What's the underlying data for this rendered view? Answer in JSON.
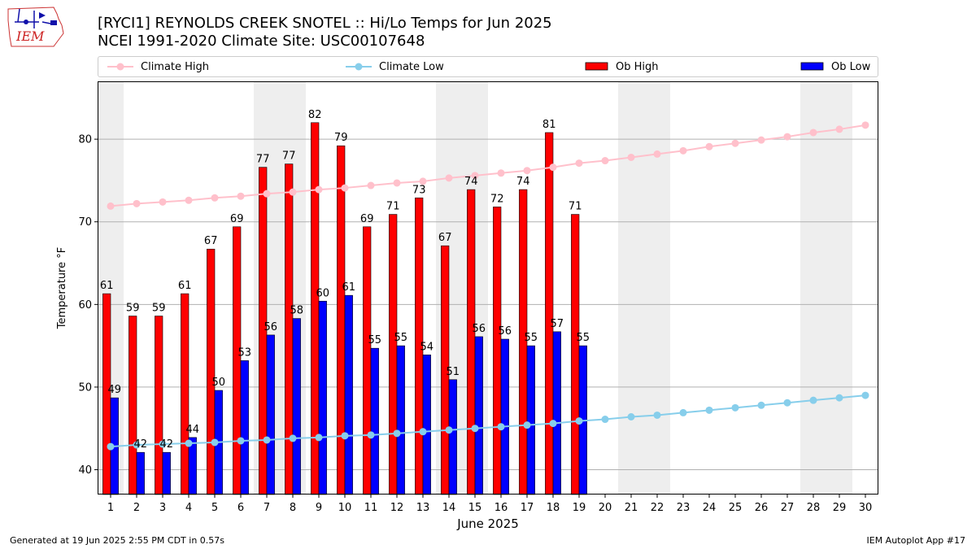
{
  "header": {
    "logo_text": "IEM",
    "title_line1": "[RYCI1] REYNOLDS CREEK SNOTEL :: Hi/Lo Temps for Jun 2025",
    "title_line2": "NCEI 1991-2020 Climate Site: USC00107648"
  },
  "legend": {
    "climate_high": "Climate High",
    "climate_low": "Climate Low",
    "ob_high": "Ob High",
    "ob_low": "Ob Low"
  },
  "footer": {
    "generated": "Generated at 19 Jun 2025 2:55 PM CDT in 0.57s",
    "app": "IEM Autoplot App #17"
  },
  "colors": {
    "ob_high": "#ff0000",
    "ob_low": "#0000ff",
    "climate_high": "#ffc0cb",
    "climate_low": "#87ceeb",
    "weekend_shade": "#eeeeee",
    "grid": "#b0b0b0"
  },
  "chart_data": {
    "type": "bar",
    "xlabel": "June 2025",
    "ylabel": "Temperature °F",
    "xlim": [
      0.5,
      30.5
    ],
    "ylim": [
      37,
      87
    ],
    "yticks": [
      40,
      50,
      60,
      70,
      80
    ],
    "grid": "y",
    "legend_position": "top",
    "shaded_days": [
      1,
      7,
      8,
      14,
      15,
      21,
      22,
      28,
      29
    ],
    "days": [
      1,
      2,
      3,
      4,
      5,
      6,
      7,
      8,
      9,
      10,
      11,
      12,
      13,
      14,
      15,
      16,
      17,
      18,
      19,
      20,
      21,
      22,
      23,
      24,
      25,
      26,
      27,
      28,
      29,
      30
    ],
    "series": [
      {
        "name": "Ob High",
        "type": "bar",
        "values": [
          61.3,
          58.6,
          58.6,
          61.3,
          66.7,
          69.4,
          76.6,
          77.0,
          82.0,
          79.2,
          69.4,
          70.9,
          72.9,
          67.1,
          73.9,
          71.8,
          73.9,
          80.8,
          70.9
        ]
      },
      {
        "name": "Ob Low",
        "type": "bar",
        "values": [
          48.7,
          42.1,
          42.1,
          43.9,
          49.6,
          53.2,
          56.3,
          58.3,
          60.4,
          61.1,
          54.7,
          55.0,
          53.9,
          50.9,
          56.1,
          55.8,
          55.0,
          56.7,
          55.0
        ]
      },
      {
        "name": "Climate High",
        "type": "line",
        "values": [
          71.9,
          72.2,
          72.4,
          72.6,
          72.9,
          73.1,
          73.4,
          73.6,
          73.9,
          74.1,
          74.4,
          74.7,
          74.9,
          75.3,
          75.6,
          75.9,
          76.2,
          76.6,
          77.1,
          77.4,
          77.8,
          78.2,
          78.6,
          79.1,
          79.5,
          79.9,
          80.3,
          80.8,
          81.2,
          81.7
        ]
      },
      {
        "name": "Climate Low",
        "type": "line",
        "values": [
          42.8,
          43.0,
          43.1,
          43.2,
          43.3,
          43.5,
          43.6,
          43.8,
          43.9,
          44.1,
          44.2,
          44.4,
          44.6,
          44.8,
          45.0,
          45.2,
          45.4,
          45.6,
          45.9,
          46.1,
          46.4,
          46.6,
          46.9,
          47.2,
          47.5,
          47.8,
          48.1,
          48.4,
          48.7,
          49.0
        ]
      }
    ],
    "ob_high_labels": [
      "61",
      "59",
      "59",
      "61",
      "67",
      "69",
      "77",
      "77",
      "82",
      "79",
      "69",
      "71",
      "73",
      "67",
      "74",
      "72",
      "74",
      "81",
      "71"
    ],
    "ob_low_labels": [
      "49",
      "42",
      "42",
      "44",
      "50",
      "53",
      "56",
      "58",
      "60",
      "61",
      "55",
      "55",
      "54",
      "51",
      "56",
      "56",
      "55",
      "57",
      "55"
    ]
  }
}
